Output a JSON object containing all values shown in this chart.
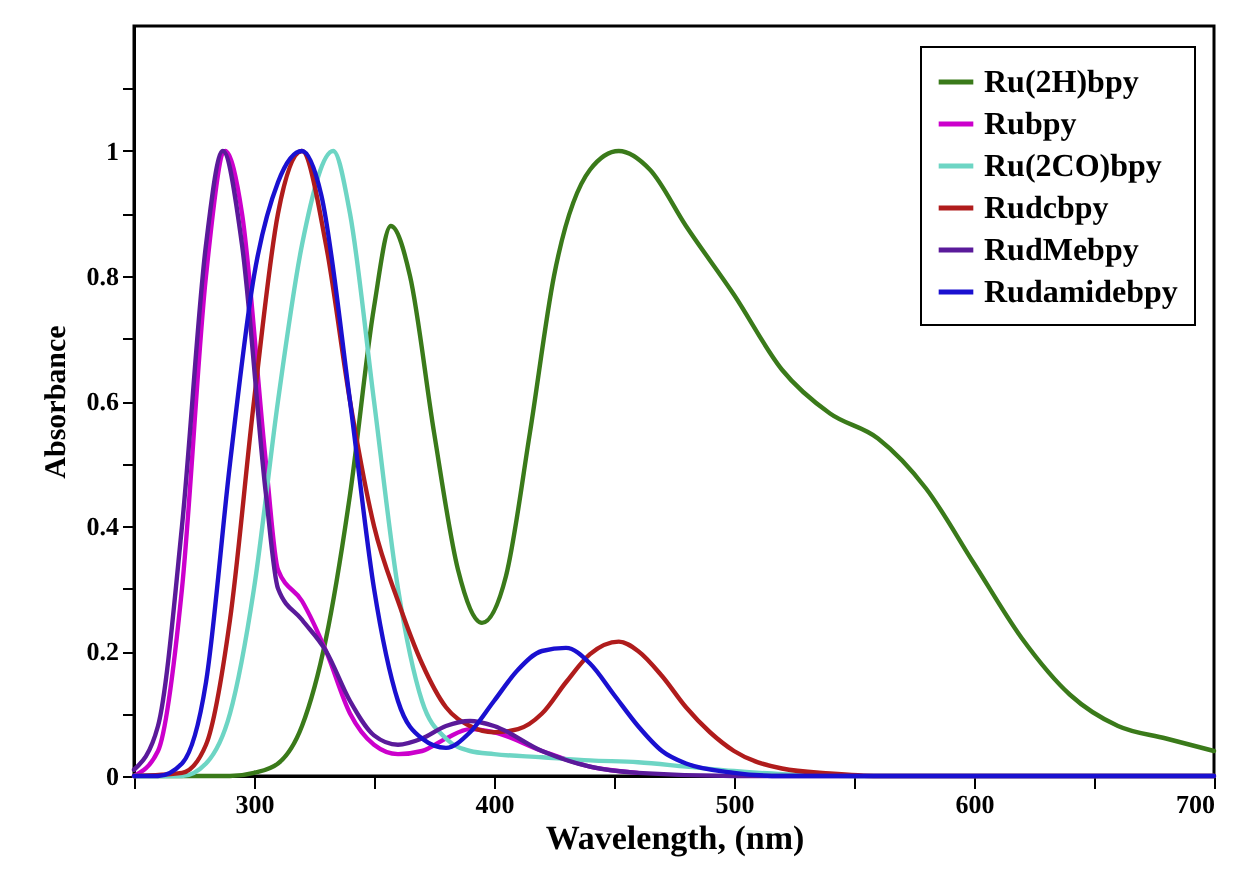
{
  "chart_data": {
    "type": "line",
    "xlabel": "Wavelength, (nm)",
    "ylabel": "Absorbance",
    "xlim": [
      250,
      700
    ],
    "ylim": [
      0,
      1.2
    ],
    "xticks": [
      {
        "value": 250,
        "label": null
      },
      300,
      {
        "value": 350,
        "label": null
      },
      400,
      {
        "value": 450,
        "label": null
      },
      500,
      {
        "value": 550,
        "label": null
      },
      600,
      {
        "value": 650,
        "label": null
      },
      700
    ],
    "yticks": [
      0,
      {
        "value": 0.1,
        "label": null
      },
      0.2,
      {
        "value": 0.3,
        "label": null
      },
      0.4,
      {
        "value": 0.5,
        "label": null
      },
      0.6,
      {
        "value": 0.7,
        "label": null
      },
      0.8,
      {
        "value": 0.9,
        "label": null
      },
      1,
      {
        "value": 1.1,
        "label": null
      }
    ],
    "grid": false,
    "legend": "top right",
    "series": [
      {
        "name": "Ru(2H)bpy",
        "color": "#3a7a1a",
        "x": [
          250,
          290,
          300,
          310,
          320,
          330,
          340,
          350,
          357,
          365,
          375,
          385,
          395,
          405,
          415,
          425,
          440,
          452,
          465,
          480,
          500,
          520,
          540,
          560,
          580,
          600,
          620,
          640,
          660,
          680,
          700
        ],
        "values": [
          0,
          0,
          0.005,
          0.02,
          0.08,
          0.22,
          0.45,
          0.75,
          0.88,
          0.8,
          0.55,
          0.33,
          0.245,
          0.32,
          0.55,
          0.8,
          0.97,
          1,
          0.97,
          0.88,
          0.77,
          0.65,
          0.58,
          0.54,
          0.46,
          0.34,
          0.22,
          0.13,
          0.08,
          0.06,
          0.04
        ]
      },
      {
        "name": "Rubpy",
        "color": "#cc00cc",
        "x": [
          250,
          260,
          270,
          280,
          288,
          295,
          305,
          310,
          320,
          330,
          340,
          350,
          360,
          370,
          380,
          390,
          400,
          420,
          440,
          460
        ],
        "values": [
          0,
          0.04,
          0.3,
          0.8,
          1,
          0.9,
          0.5,
          0.33,
          0.28,
          0.2,
          0.1,
          0.05,
          0.035,
          0.04,
          0.06,
          0.075,
          0.07,
          0.04,
          0.015,
          0.005
        ]
      },
      {
        "name": "Ru(2CO)bpy",
        "color": "#6dd5c4",
        "x": [
          250,
          270,
          280,
          290,
          300,
          310,
          320,
          333,
          340,
          350,
          360,
          370,
          380,
          390,
          400,
          420,
          440,
          460,
          480,
          500,
          520,
          550,
          700
        ],
        "values": [
          0,
          0,
          0.02,
          0.1,
          0.3,
          0.6,
          0.85,
          1,
          0.9,
          0.6,
          0.3,
          0.12,
          0.06,
          0.04,
          0.035,
          0.03,
          0.025,
          0.022,
          0.015,
          0.008,
          0.003,
          0,
          0
        ]
      },
      {
        "name": "Rudcbpy",
        "color": "#b01c1c",
        "x": [
          250,
          270,
          280,
          290,
          300,
          310,
          320,
          330,
          340,
          350,
          360,
          370,
          380,
          390,
          400,
          410,
          420,
          430,
          440,
          452,
          460,
          470,
          480,
          490,
          500,
          520,
          540,
          560,
          700
        ],
        "values": [
          0,
          0.005,
          0.05,
          0.25,
          0.6,
          0.9,
          1,
          0.85,
          0.6,
          0.4,
          0.28,
          0.18,
          0.11,
          0.08,
          0.07,
          0.075,
          0.1,
          0.15,
          0.195,
          0.215,
          0.2,
          0.16,
          0.11,
          0.07,
          0.04,
          0.012,
          0.004,
          0,
          0
        ]
      },
      {
        "name": "RudMebpy",
        "color": "#5a1a9a",
        "x": [
          250,
          260,
          270,
          280,
          287,
          295,
          305,
          310,
          320,
          330,
          340,
          350,
          360,
          370,
          380,
          390,
          400,
          420,
          440,
          460,
          500,
          700
        ],
        "values": [
          0.01,
          0.08,
          0.4,
          0.85,
          1,
          0.85,
          0.45,
          0.3,
          0.25,
          0.2,
          0.12,
          0.065,
          0.05,
          0.06,
          0.08,
          0.088,
          0.08,
          0.04,
          0.015,
          0.005,
          0,
          0
        ]
      },
      {
        "name": "Rudamidebpy",
        "color": "#1a10d0",
        "x": [
          250,
          260,
          270,
          280,
          290,
          300,
          310,
          320,
          328,
          340,
          350,
          360,
          370,
          380,
          390,
          400,
          410,
          420,
          430,
          440,
          450,
          460,
          470,
          480,
          500,
          520,
          700
        ],
        "values": [
          0,
          0,
          0.02,
          0.15,
          0.5,
          0.8,
          0.95,
          1,
          0.93,
          0.6,
          0.3,
          0.12,
          0.06,
          0.045,
          0.07,
          0.12,
          0.17,
          0.2,
          0.205,
          0.18,
          0.13,
          0.08,
          0.04,
          0.02,
          0.005,
          0,
          0
        ]
      }
    ]
  }
}
